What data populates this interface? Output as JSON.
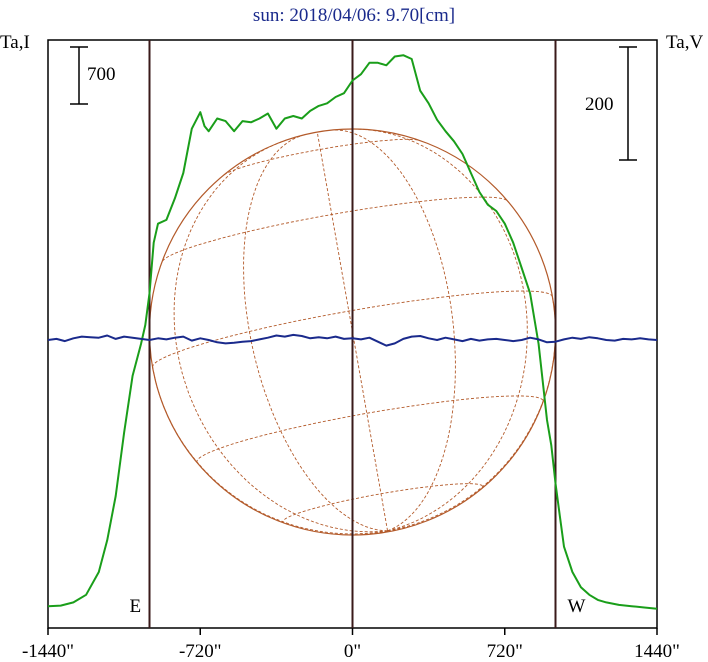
{
  "chart_data": {
    "type": "line",
    "title": "sun: 2018/04/06: 9.70[cm]",
    "left_axis_label": "Ta,I",
    "right_axis_label": "Ta,V",
    "left_scale_bar": {
      "label": "700",
      "value": 700
    },
    "right_scale_bar": {
      "label": "200",
      "value": 200
    },
    "xlim": [
      -1440,
      1440
    ],
    "x_ticks": [
      {
        "value": -1440,
        "label": "-1440\""
      },
      {
        "value": -720,
        "label": "-720\""
      },
      {
        "value": 0,
        "label": "0\""
      },
      {
        "value": 720,
        "label": "720\""
      },
      {
        "value": 1440,
        "label": "1440\""
      }
    ],
    "vertical_markers": [
      {
        "value": -960,
        "label": "E"
      },
      {
        "value": 0,
        "label": ""
      },
      {
        "value": 960,
        "label": "W"
      }
    ],
    "solar_disk_radius_arcsec": 960,
    "colors": {
      "intensity": "#1a9e1a",
      "polarization": "#1a2a8c",
      "disk": "#b35a2a",
      "frame": "#000000",
      "markers": "#3a1a1a",
      "title": "#1a2a8c"
    },
    "series": [
      {
        "key": "Ta,I",
        "x": [
          -1440,
          -1380,
          -1320,
          -1260,
          -1200,
          -1160,
          -1120,
          -1080,
          -1040,
          -1000,
          -980,
          -960,
          -940,
          -920,
          -880,
          -840,
          -800,
          -760,
          -720,
          -700,
          -680,
          -640,
          -600,
          -560,
          -520,
          -480,
          -440,
          -400,
          -360,
          -320,
          -280,
          -240,
          -200,
          -160,
          -120,
          -80,
          -40,
          0,
          40,
          80,
          120,
          160,
          200,
          240,
          280,
          320,
          360,
          400,
          440,
          480,
          520,
          560,
          600,
          640,
          680,
          720,
          760,
          800,
          840,
          880,
          920,
          940,
          960,
          980,
          1000,
          1040,
          1080,
          1120,
          1160,
          1200,
          1260,
          1320,
          1380,
          1440
        ],
        "y": [
          30,
          35,
          60,
          120,
          300,
          550,
          900,
          1400,
          1850,
          2100,
          2250,
          2500,
          2900,
          3050,
          3080,
          3250,
          3450,
          3800,
          3930,
          3820,
          3780,
          3880,
          3860,
          3780,
          3860,
          3850,
          3880,
          3920,
          3800,
          3880,
          3900,
          3880,
          3940,
          3980,
          4000,
          4050,
          4080,
          4180,
          4230,
          4320,
          4320,
          4300,
          4370,
          4380,
          4350,
          4100,
          4000,
          3870,
          3780,
          3700,
          3600,
          3450,
          3300,
          3200,
          3150,
          3050,
          2900,
          2700,
          2500,
          2100,
          1500,
          1300,
          1000,
          750,
          500,
          300,
          180,
          120,
          80,
          60,
          40,
          30,
          20,
          10
        ]
      },
      {
        "key": "Ta,V",
        "x": [
          -1440,
          -1400,
          -1360,
          -1320,
          -1280,
          -1240,
          -1200,
          -1160,
          -1120,
          -1080,
          -1040,
          -1000,
          -960,
          -920,
          -880,
          -840,
          -800,
          -760,
          -720,
          -680,
          -640,
          -600,
          -560,
          -520,
          -480,
          -440,
          -400,
          -360,
          -320,
          -280,
          -240,
          -200,
          -160,
          -120,
          -80,
          -40,
          0,
          40,
          80,
          120,
          160,
          200,
          240,
          280,
          320,
          360,
          400,
          440,
          480,
          520,
          560,
          600,
          640,
          680,
          720,
          760,
          800,
          840,
          880,
          920,
          960,
          1000,
          1040,
          1080,
          1120,
          1160,
          1200,
          1240,
          1280,
          1320,
          1360,
          1400,
          1440
        ],
        "y": [
          0,
          2,
          -2,
          3,
          6,
          5,
          4,
          8,
          2,
          6,
          4,
          2,
          0,
          3,
          1,
          4,
          6,
          -1,
          3,
          0,
          -4,
          -6,
          -5,
          -3,
          -2,
          1,
          4,
          8,
          6,
          9,
          7,
          3,
          5,
          3,
          6,
          2,
          3,
          1,
          4,
          -3,
          -10,
          -6,
          2,
          6,
          7,
          3,
          0,
          4,
          1,
          -2,
          2,
          -1,
          1,
          2,
          0,
          -2,
          0,
          4,
          1,
          -4,
          -3,
          1,
          4,
          2,
          5,
          3,
          0,
          -1,
          2,
          1,
          3,
          1,
          0
        ]
      }
    ]
  }
}
